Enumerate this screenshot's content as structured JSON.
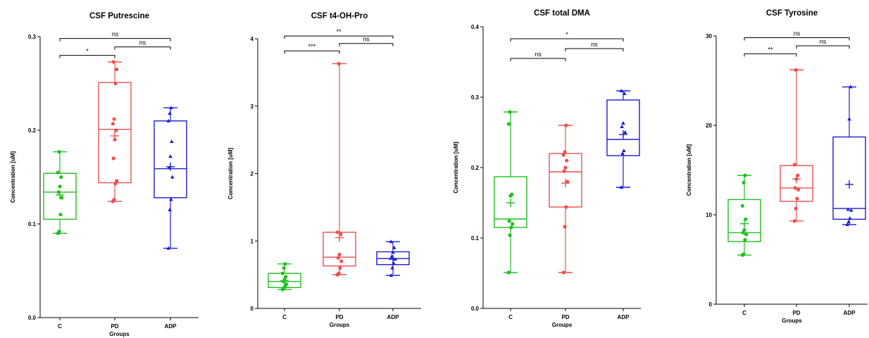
{
  "chart_data": [
    {
      "type": "boxplot",
      "title": "CSF Putrescine",
      "xlabel": "Groups",
      "ylabel": "Concentration [uM]",
      "ylim": [
        0,
        0.3
      ],
      "yticks": [
        0.0,
        0.1,
        0.2,
        0.3
      ],
      "ytick_labels": [
        "0.0",
        "0.1",
        "0.2",
        "0.3"
      ],
      "categories": [
        "C",
        "PD",
        "ADP"
      ],
      "series": [
        {
          "category": "C",
          "color": "#1fc01f",
          "marker": "circle",
          "min": 0.09,
          "q1": 0.105,
          "median": 0.134,
          "q3": 0.154,
          "max": 0.177,
          "mean": 0.131,
          "points": [
            0.09,
            0.092,
            0.11,
            0.128,
            0.134,
            0.14,
            0.15,
            0.155,
            0.177
          ]
        },
        {
          "category": "PD",
          "color": "#ef4f4f",
          "marker": "circle",
          "min": 0.124,
          "q1": 0.144,
          "median": 0.201,
          "q3": 0.251,
          "max": 0.273,
          "mean": 0.194,
          "points": [
            0.124,
            0.126,
            0.143,
            0.146,
            0.17,
            0.19,
            0.2,
            0.207,
            0.212,
            0.25,
            0.265,
            0.273
          ]
        },
        {
          "category": "ADP",
          "color": "#1c1cd2",
          "marker": "triangle",
          "min": 0.074,
          "q1": 0.128,
          "median": 0.159,
          "q3": 0.21,
          "max": 0.224,
          "mean": 0.161,
          "points": [
            0.074,
            0.115,
            0.126,
            0.15,
            0.16,
            0.172,
            0.188,
            0.21,
            0.218,
            0.224
          ]
        }
      ],
      "comparisons": [
        {
          "from": "C",
          "to": "PD",
          "label": "*",
          "y": 0.28
        },
        {
          "from": "PD",
          "to": "ADP",
          "label": "ns",
          "y": 0.289
        },
        {
          "from": "C",
          "to": "ADP",
          "label": "ns",
          "y": 0.298
        }
      ]
    },
    {
      "type": "boxplot",
      "title": "CSF t4-OH-Pro",
      "xlabel": "Groups",
      "ylabel": "Concentration [uM]",
      "ylim": [
        0,
        4
      ],
      "yticks": [
        0,
        1,
        2,
        3,
        4
      ],
      "ytick_labels": [
        "0",
        "1",
        "2",
        "3",
        "4"
      ],
      "categories": [
        "C",
        "PD",
        "ADP"
      ],
      "series": [
        {
          "category": "C",
          "color": "#1fc01f",
          "marker": "circle",
          "min": 0.28,
          "q1": 0.31,
          "median": 0.4,
          "q3": 0.52,
          "max": 0.66,
          "mean": 0.41,
          "points": [
            0.28,
            0.3,
            0.33,
            0.36,
            0.4,
            0.43,
            0.47,
            0.52,
            0.6,
            0.66
          ]
        },
        {
          "category": "PD",
          "color": "#ef4f4f",
          "marker": "circle",
          "min": 0.5,
          "q1": 0.63,
          "median": 0.76,
          "q3": 1.13,
          "max": 3.63,
          "mean": 1.05,
          "points": [
            0.5,
            0.52,
            0.6,
            0.7,
            0.75,
            0.8,
            1.1,
            1.13,
            3.63
          ]
        },
        {
          "category": "ADP",
          "color": "#1c1cd2",
          "marker": "triangle",
          "min": 0.49,
          "q1": 0.65,
          "median": 0.74,
          "q3": 0.84,
          "max": 0.99,
          "mean": 0.73,
          "points": [
            0.49,
            0.6,
            0.67,
            0.73,
            0.77,
            0.83,
            0.9,
            0.99
          ]
        }
      ],
      "comparisons": [
        {
          "from": "C",
          "to": "PD",
          "label": "***",
          "y": 3.82
        },
        {
          "from": "PD",
          "to": "ADP",
          "label": "ns",
          "y": 3.93
        },
        {
          "from": "C",
          "to": "ADP",
          "label": "**",
          "y": 4.04
        }
      ]
    },
    {
      "type": "boxplot",
      "title": "CSF total DMA",
      "xlabel": "Groups",
      "ylabel": "Concentration [uM]",
      "ylim": [
        0,
        0.4
      ],
      "yticks": [
        0.0,
        0.1,
        0.2,
        0.3,
        0.4
      ],
      "ytick_labels": [
        "0.0",
        "0.1",
        "0.2",
        "0.3",
        "0.4"
      ],
      "categories": [
        "C",
        "PD",
        "ADP"
      ],
      "series": [
        {
          "category": "C",
          "color": "#1fc01f",
          "marker": "circle",
          "min": 0.051,
          "q1": 0.115,
          "median": 0.127,
          "q3": 0.187,
          "max": 0.279,
          "mean": 0.15,
          "points": [
            0.051,
            0.104,
            0.115,
            0.12,
            0.124,
            0.16,
            0.162,
            0.262,
            0.279
          ]
        },
        {
          "category": "PD",
          "color": "#ef4f4f",
          "marker": "circle",
          "min": 0.051,
          "q1": 0.144,
          "median": 0.194,
          "q3": 0.22,
          "max": 0.26,
          "mean": 0.178,
          "points": [
            0.051,
            0.116,
            0.144,
            0.18,
            0.195,
            0.2,
            0.21,
            0.218,
            0.222,
            0.26
          ]
        },
        {
          "category": "ADP",
          "color": "#1c1cd2",
          "marker": "triangle",
          "min": 0.172,
          "q1": 0.217,
          "median": 0.24,
          "q3": 0.296,
          "max": 0.309,
          "mean": 0.247,
          "points": [
            0.172,
            0.22,
            0.224,
            0.25,
            0.258,
            0.263,
            0.305,
            0.309
          ]
        }
      ],
      "comparisons": [
        {
          "from": "C",
          "to": "PD",
          "label": "ns",
          "y": 0.355
        },
        {
          "from": "PD",
          "to": "ADP",
          "label": "ns",
          "y": 0.369
        },
        {
          "from": "C",
          "to": "ADP",
          "label": "*",
          "y": 0.383
        }
      ]
    },
    {
      "type": "boxplot",
      "title": "CSF Tyrosine",
      "xlabel": "Groups",
      "ylabel": "Concentration [uM]",
      "ylim": [
        0,
        30
      ],
      "yticks": [
        0,
        10,
        20,
        30
      ],
      "ytick_labels": [
        "0",
        "10",
        "20",
        "30"
      ],
      "categories": [
        "C",
        "PD",
        "ADP"
      ],
      "series": [
        {
          "category": "C",
          "color": "#1fc01f",
          "marker": "circle",
          "min": 5.5,
          "q1": 7.0,
          "median": 8.0,
          "q3": 11.7,
          "max": 14.4,
          "mean": 9.0,
          "points": [
            5.5,
            5.6,
            7.2,
            7.8,
            8.0,
            8.3,
            9.5,
            11.0,
            13.6,
            14.4
          ]
        },
        {
          "category": "PD",
          "color": "#ef4f4f",
          "marker": "circle",
          "min": 9.3,
          "q1": 11.5,
          "median": 13.0,
          "q3": 15.5,
          "max": 26.2,
          "mean": 14.0,
          "points": [
            9.3,
            10.7,
            11.8,
            12.8,
            13.0,
            14.0,
            14.4,
            15.6,
            26.2
          ]
        },
        {
          "category": "ADP",
          "color": "#1c1cd2",
          "marker": "triangle",
          "min": 8.9,
          "q1": 9.5,
          "median": 10.7,
          "q3": 18.7,
          "max": 24.3,
          "mean": 13.4,
          "points": [
            8.9,
            9.2,
            9.6,
            10.5,
            10.6,
            20.7,
            24.3
          ]
        }
      ],
      "comparisons": [
        {
          "from": "C",
          "to": "PD",
          "label": "**",
          "y": 28.0
        },
        {
          "from": "PD",
          "to": "ADP",
          "label": "ns",
          "y": 28.9
        },
        {
          "from": "C",
          "to": "ADP",
          "label": "ns",
          "y": 29.8
        }
      ]
    }
  ]
}
